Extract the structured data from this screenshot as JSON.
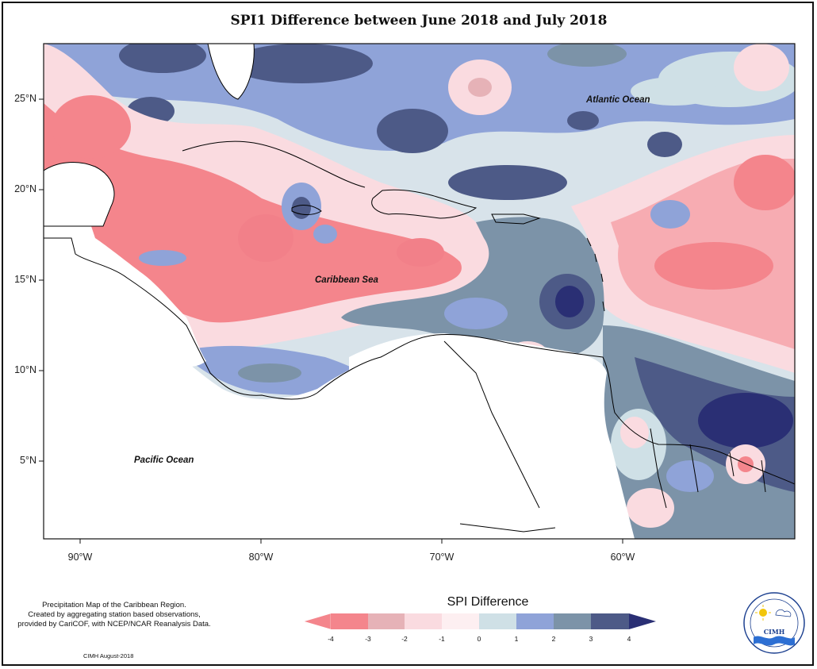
{
  "title": "SPI1 Difference between June 2018 and July 2018",
  "map": {
    "lat_labels": [
      "25°N",
      "20°N",
      "15°N",
      "10°N",
      "5°N"
    ],
    "lon_labels": [
      "90°W",
      "80°W",
      "70°W",
      "60°W"
    ],
    "places": {
      "atlantic": "Atlantic Ocean",
      "caribbean": "Caribbean Sea",
      "pacific": "Pacific Ocean"
    }
  },
  "legend": {
    "title": "SPI Difference",
    "ticks": [
      "-4",
      "-3",
      "-2",
      "-1",
      "0",
      "1",
      "2",
      "3",
      "4"
    ],
    "colors": [
      "#f4858c",
      "#e6b2b7",
      "#fadbe0",
      "#fdeff1",
      "#cfe0e6",
      "#8fa3d8",
      "#7c93a8",
      "#4d5a87",
      "#2a2f74"
    ]
  },
  "caption": {
    "line1": "Precipitation Map of the Caribbean Region.",
    "line2": "Created by aggregating station based observations,",
    "line3": "provided by CariCOF, with NCEP/NCAR Reanalysis Data."
  },
  "credit": "CIMH August-2018",
  "logo": {
    "text": "CIMH",
    "ring_text": "Caribbean Institute for Meteorology and Hydrology"
  }
}
